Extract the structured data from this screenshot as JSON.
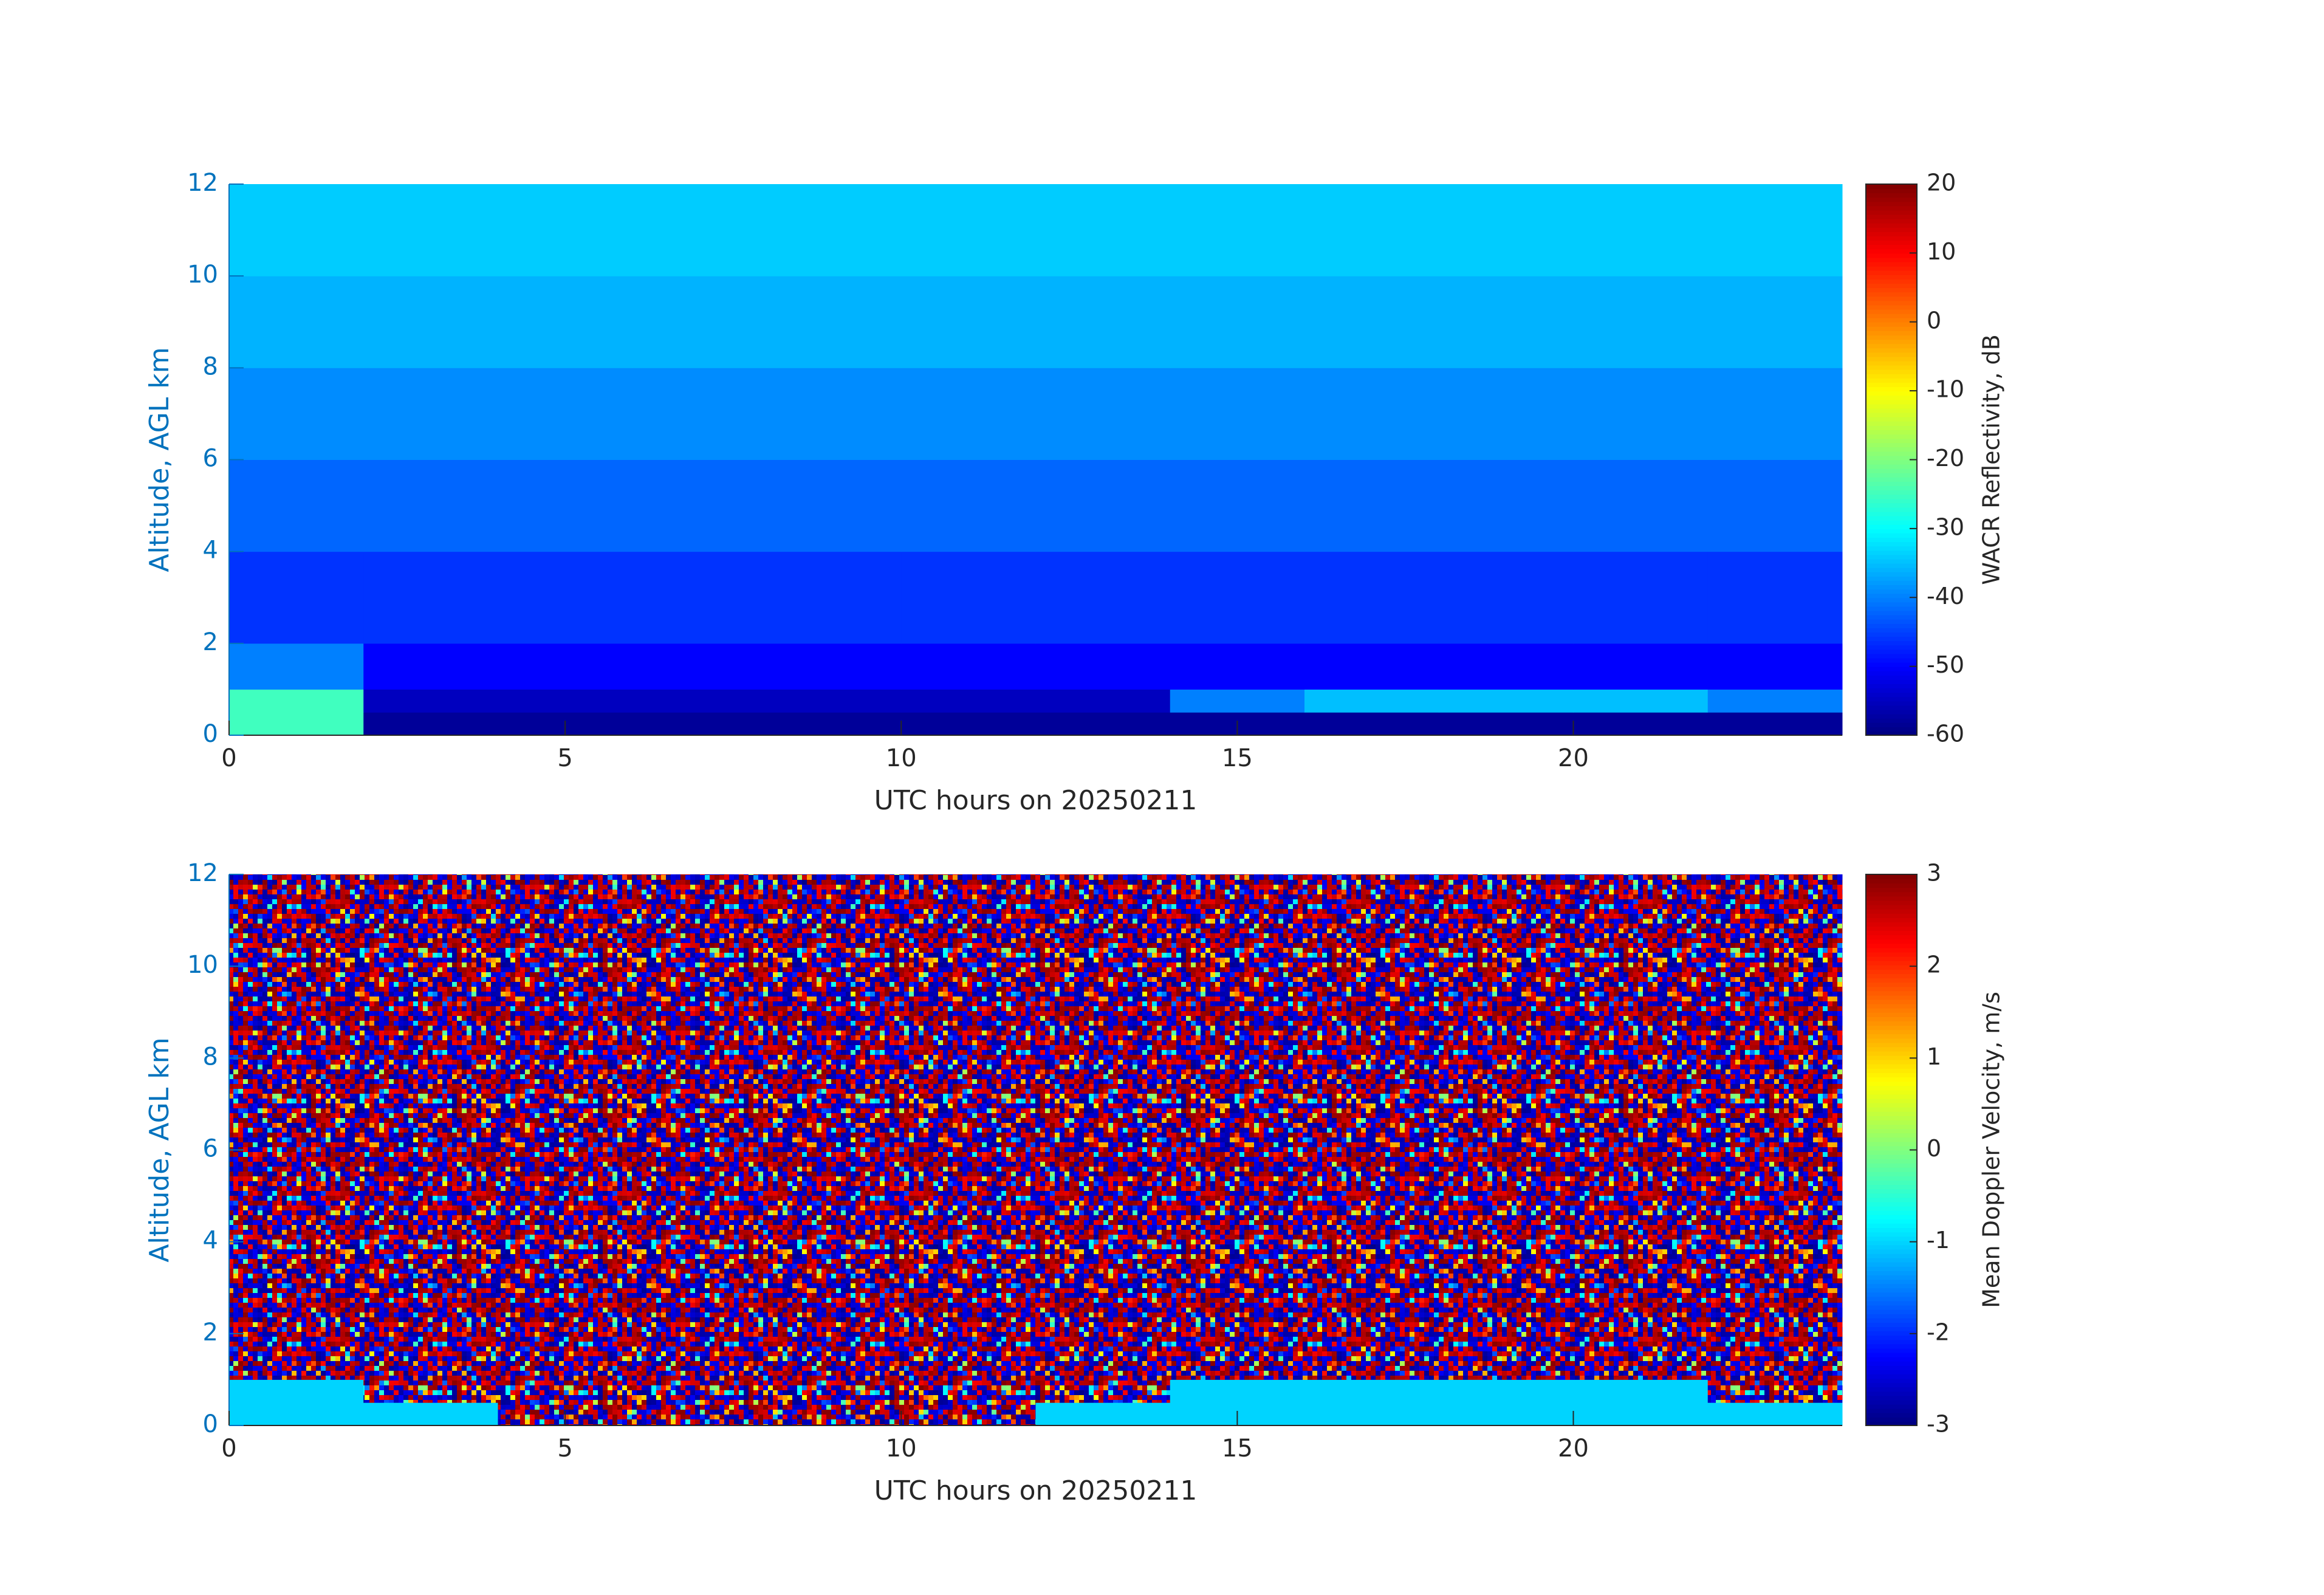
{
  "chart_data": [
    {
      "type": "heatmap",
      "colormap": "jet",
      "x_label": "UTC hours on 20250211",
      "y_label": "Altitude, AGL km",
      "colorbar_label": "WACR Reflectivity, dB",
      "xlim": [
        0,
        24
      ],
      "ylim": [
        0,
        12
      ],
      "xticks": [
        0,
        5,
        10,
        15,
        20
      ],
      "yticks": [
        0,
        2,
        4,
        6,
        8,
        10,
        12
      ],
      "clim": [
        -60,
        20
      ],
      "cticks": [
        -60,
        -50,
        -40,
        -30,
        -20,
        -10,
        0,
        10,
        20
      ],
      "x_edges": [
        0,
        2,
        4,
        6,
        8,
        10,
        12,
        14,
        16,
        18,
        20,
        22,
        24
      ],
      "y_edges": [
        0,
        0.5,
        1,
        2,
        4,
        6,
        8,
        10,
        12
      ],
      "z": [
        [
          -25,
          -58,
          -58,
          -58,
          -58,
          -58,
          -58,
          -58,
          -58,
          -58,
          -58,
          -58
        ],
        [
          -25,
          -55,
          -55,
          -55,
          -55,
          -55,
          -55,
          -40,
          -35,
          -35,
          -35,
          -40
        ],
        [
          -40,
          -50,
          -50,
          -50,
          -50,
          -50,
          -50,
          -50,
          -50,
          -50,
          -50,
          -50
        ],
        [
          -46,
          -46,
          -46,
          -46,
          -46,
          -46,
          -46,
          -46,
          -46,
          -46,
          -46,
          -46
        ],
        [
          -42,
          -42,
          -42,
          -42,
          -42,
          -42,
          -42,
          -42,
          -42,
          -42,
          -42,
          -42
        ],
        [
          -39,
          -39,
          -39,
          -39,
          -39,
          -39,
          -39,
          -39,
          -39,
          -39,
          -39,
          -39
        ],
        [
          -36,
          -36,
          -36,
          -36,
          -36,
          -36,
          -36,
          -36,
          -36,
          -36,
          -36,
          -36
        ],
        [
          -34,
          -34,
          -34,
          -34,
          -34,
          -34,
          -34,
          -34,
          -34,
          -34,
          -34,
          -34
        ]
      ]
    },
    {
      "type": "heatmap",
      "colormap": "jet",
      "x_label": "UTC hours on 20250211",
      "y_label": "Altitude, AGL km",
      "colorbar_label": "Mean Doppler Velocity, m/s",
      "xlim": [
        0,
        24
      ],
      "ylim": [
        0,
        12
      ],
      "xticks": [
        0,
        5,
        10,
        15,
        20
      ],
      "yticks": [
        0,
        2,
        4,
        6,
        8,
        10,
        12
      ],
      "clim": [
        -3,
        3
      ],
      "cticks": [
        -3,
        -2,
        -1,
        0,
        1,
        2,
        3
      ],
      "x_edges": [
        0,
        2,
        4,
        6,
        8,
        10,
        12,
        14,
        16,
        18,
        20,
        22,
        24
      ],
      "y_edges": [
        0,
        0.5,
        1,
        2,
        4,
        6,
        8,
        10,
        12
      ],
      "z": [
        [
          -1,
          -1,
          null,
          null,
          null,
          null,
          -1,
          -1,
          -1,
          -1,
          -1,
          -1
        ],
        [
          -1,
          null,
          null,
          null,
          null,
          null,
          null,
          -1,
          -1,
          -1,
          -1,
          null
        ],
        [
          null,
          null,
          null,
          null,
          null,
          null,
          null,
          null,
          null,
          null,
          null,
          null
        ],
        [
          null,
          null,
          null,
          null,
          null,
          null,
          null,
          null,
          null,
          null,
          null,
          null
        ],
        [
          null,
          null,
          null,
          null,
          null,
          null,
          null,
          null,
          null,
          null,
          null,
          null
        ],
        [
          null,
          null,
          null,
          null,
          null,
          null,
          null,
          null,
          null,
          null,
          null,
          null
        ],
        [
          null,
          null,
          null,
          null,
          null,
          null,
          null,
          null,
          null,
          null,
          null,
          null
        ],
        [
          null,
          null,
          null,
          null,
          null,
          null,
          null,
          null,
          null,
          null,
          null,
          null
        ]
      ]
    }
  ]
}
